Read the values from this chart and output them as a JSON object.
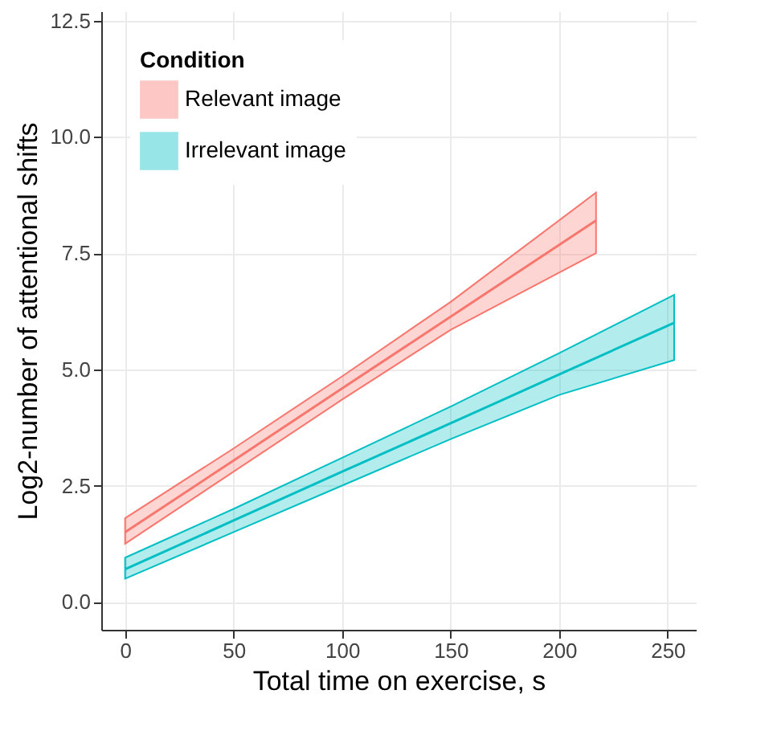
{
  "chart_data": {
    "type": "line",
    "xlabel": "Total time on exercise, s",
    "ylabel": "Log2-number of attentional shifts",
    "legend_title": "Condition",
    "series": [
      {
        "name": "Relevant image",
        "color": "#f8766d",
        "x": [
          0,
          50,
          100,
          150,
          217
        ],
        "values": [
          1.5,
          3.04,
          4.59,
          6.13,
          8.2
        ],
        "lower": [
          1.25,
          2.8,
          4.35,
          5.85,
          7.5
        ],
        "upper": [
          1.8,
          3.3,
          4.85,
          6.45,
          8.8
        ]
      },
      {
        "name": "Irrelevant image",
        "color": "#00bfc4",
        "x": [
          0,
          50,
          100,
          150,
          200,
          253
        ],
        "values": [
          0.7,
          1.75,
          2.8,
          3.84,
          4.89,
          6.0
        ],
        "lower": [
          0.5,
          1.5,
          2.5,
          3.5,
          4.45,
          5.2
        ],
        "upper": [
          0.95,
          2.0,
          3.1,
          4.2,
          5.35,
          6.6
        ]
      }
    ],
    "xlim": [
      -11,
      263
    ],
    "xticks": [
      0,
      50,
      100,
      150,
      200,
      250
    ],
    "ylim": [
      -0.6,
      12.7
    ],
    "yticks": [
      {
        "value": 0,
        "label": "0.0"
      },
      2.5,
      {
        "value": 5,
        "label": "5.0"
      },
      7.5,
      {
        "value": 10,
        "label": "10.0"
      },
      12.5
    ],
    "grid": true,
    "legend": "top left"
  }
}
